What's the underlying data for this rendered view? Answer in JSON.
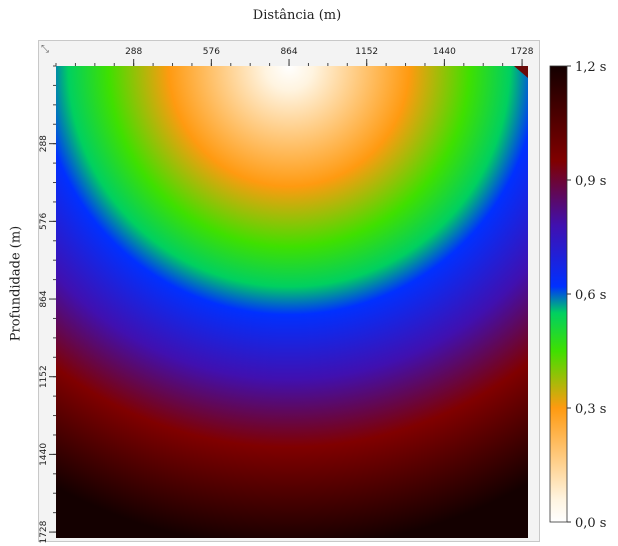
{
  "chart_data": {
    "type": "heatmap",
    "title": "",
    "xlabel": "Distância (m)",
    "ylabel": "Profundidade (m)",
    "x_ticks": [
      "288",
      "576",
      "864",
      "1152",
      "1440",
      "1728"
    ],
    "y_ticks": [
      "288",
      "576",
      "864",
      "1152",
      "1440",
      "1728"
    ],
    "xlim": [
      0,
      1750
    ],
    "ylim": [
      0,
      1750
    ],
    "source_x": 864,
    "source_y": 0,
    "colorbar": {
      "label_unit": "s",
      "range": [
        0,
        1.2
      ],
      "ticks": [
        "0,0 s",
        "0,3 s",
        "0,6 s",
        "0,9 s",
        "1,2 s"
      ],
      "tick_values": [
        0,
        0.3,
        0.6,
        0.9,
        1.2
      ],
      "stops": [
        {
          "value": 0.0,
          "color": "#ffffff"
        },
        {
          "value": 0.06,
          "color": "#fff4e0"
        },
        {
          "value": 0.3,
          "color": "#ff9a10"
        },
        {
          "value": 0.45,
          "color": "#3fe000"
        },
        {
          "value": 0.55,
          "color": "#00d060"
        },
        {
          "value": 0.62,
          "color": "#0030ff"
        },
        {
          "value": 0.78,
          "color": "#4010b0"
        },
        {
          "value": 0.95,
          "color": "#800000"
        },
        {
          "value": 1.2,
          "color": "#140000"
        }
      ]
    },
    "grid": false,
    "legend": "right"
  }
}
